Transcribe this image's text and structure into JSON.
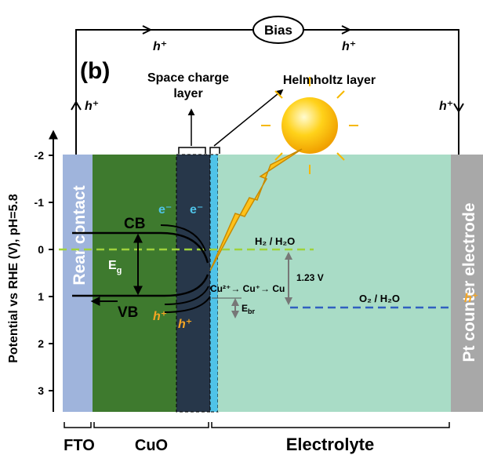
{
  "panel_label": "(b)",
  "bias": "Bias",
  "circuit_holes": [
    "h⁺",
    "h⁺",
    "h⁺",
    "h⁺"
  ],
  "y_axis": {
    "label": "Potential vs RHE (V), pH=5.8",
    "ticks": [
      -2,
      -1,
      0,
      1,
      2,
      3
    ]
  },
  "layers": {
    "rear_contact": "Rear contact",
    "counter_electrode": "Pt counter electrode"
  },
  "bottom_labels": [
    "FTO",
    "CuO",
    "Electrolyte"
  ],
  "top_labels": {
    "space_charge": [
      "Space charge",
      "layer"
    ],
    "helmholtz": "Helmholtz layer"
  },
  "bands": {
    "cb": "CB",
    "vb": "VB",
    "eg": {
      "main": "E",
      "sub": "g"
    }
  },
  "carriers": {
    "electrons": [
      "e⁻",
      "e⁻"
    ],
    "holes": [
      "h⁺",
      "h⁺",
      "h⁺"
    ]
  },
  "redox": {
    "h2": "H₂ / H₂O",
    "o2": "O₂ / H₂O",
    "voltage": "1.23 V",
    "copper": "Cu²⁺→ Cu⁺→ Cu",
    "ebr": {
      "main": "E",
      "sub": "br"
    }
  }
}
